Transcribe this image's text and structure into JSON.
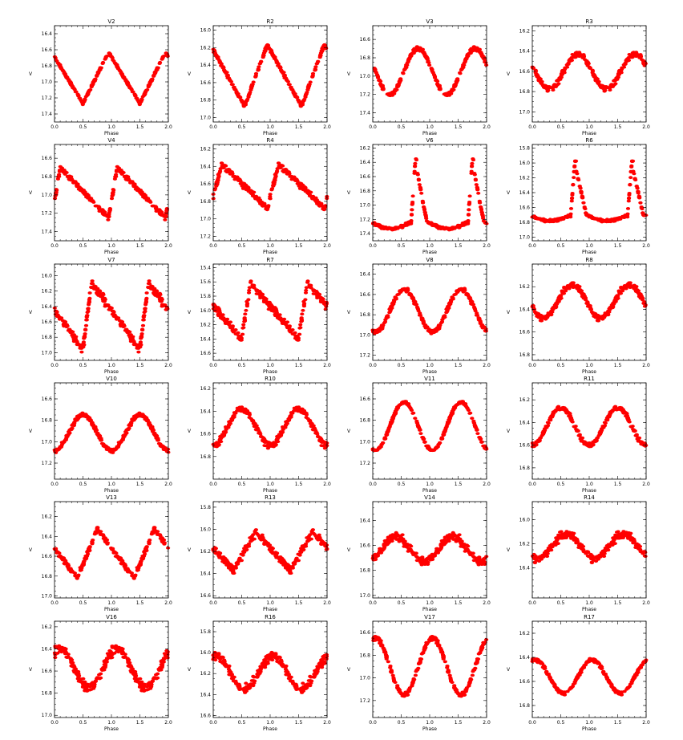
{
  "figure": {
    "xlabel": "Phase",
    "ylabel": "V",
    "xticks": [
      "0.0",
      "0.5",
      "1.0",
      "1.5",
      "2.0"
    ],
    "marker_color": "#ff0000"
  },
  "chart_data": [
    {
      "type": "scatter",
      "title": "V2",
      "ylim": [
        17.5,
        16.3
      ],
      "yticks": [
        "16.4",
        "16.6",
        "16.8",
        "17.0",
        "17.2",
        "17.4"
      ],
      "shape": "saw",
      "bright_phase": 0.95,
      "faint_phase": 0.5,
      "min_mag": 16.63,
      "max_mag": 17.27,
      "scatter": 0.02
    },
    {
      "type": "scatter",
      "title": "R2",
      "ylim": [
        17.05,
        15.95
      ],
      "yticks": [
        "16.0",
        "16.2",
        "16.4",
        "16.6",
        "16.8",
        "17.0"
      ],
      "shape": "saw",
      "bright_phase": 0.95,
      "faint_phase": 0.55,
      "min_mag": 16.17,
      "max_mag": 16.87,
      "scatter": 0.03
    },
    {
      "type": "scatter",
      "title": "V3",
      "ylim": [
        17.5,
        16.45
      ],
      "yticks": [
        "16.6",
        "16.8",
        "17.0",
        "17.2",
        "17.4"
      ],
      "shape": "sine",
      "bright_phase": 0.8,
      "faint_phase": 0.3,
      "min_mag": 16.7,
      "max_mag": 17.2,
      "scatter": 0.03
    },
    {
      "type": "scatter",
      "title": "R3",
      "ylim": [
        17.1,
        16.15
      ],
      "yticks": [
        "16.2",
        "16.4",
        "16.6",
        "16.8",
        "17.0"
      ],
      "shape": "sine",
      "bright_phase": 0.8,
      "faint_phase": 0.3,
      "min_mag": 16.43,
      "max_mag": 16.77,
      "scatter": 0.04
    },
    {
      "type": "scatter",
      "title": "V4",
      "ylim": [
        17.5,
        16.45
      ],
      "yticks": [
        "16.6",
        "16.8",
        "17.0",
        "17.2",
        "17.4"
      ],
      "shape": "saw",
      "bright_phase": 0.1,
      "faint_phase": 0.95,
      "min_mag": 16.7,
      "max_mag": 17.25,
      "scatter": 0.04
    },
    {
      "type": "scatter",
      "title": "R4",
      "ylim": [
        17.25,
        16.15
      ],
      "yticks": [
        "16.2",
        "16.4",
        "16.6",
        "16.8",
        "17.0",
        "17.2"
      ],
      "shape": "saw",
      "bright_phase": 0.15,
      "faint_phase": 0.95,
      "min_mag": 16.37,
      "max_mag": 16.88,
      "scatter": 0.05
    },
    {
      "type": "scatter",
      "title": "V6",
      "ylim": [
        17.5,
        16.15
      ],
      "yticks": [
        "16.2",
        "16.4",
        "16.6",
        "16.8",
        "17.0",
        "17.2",
        "17.4"
      ],
      "shape": "eclipse",
      "bright_phase": 0.75,
      "faint_phase": 0.5,
      "min_mag": 16.35,
      "max_mag": 17.33,
      "scatter": 0.03
    },
    {
      "type": "scatter",
      "title": "R6",
      "ylim": [
        17.05,
        15.75
      ],
      "yticks": [
        "15.8",
        "16.0",
        "16.2",
        "16.4",
        "16.6",
        "16.8",
        "17.0"
      ],
      "shape": "eclipse",
      "bright_phase": 0.75,
      "faint_phase": 0.5,
      "min_mag": 15.98,
      "max_mag": 16.78,
      "scatter": 0.03
    },
    {
      "type": "scatter",
      "title": "V7",
      "ylim": [
        17.1,
        15.85
      ],
      "yticks": [
        "15.8",
        "16.0",
        "16.2",
        "16.4",
        "16.6",
        "16.8",
        "17.0"
      ],
      "shape": "saw",
      "bright_phase": 0.65,
      "faint_phase": 0.5,
      "min_mag": 16.1,
      "max_mag": 16.95,
      "scatter": 0.08
    },
    {
      "type": "scatter",
      "title": "R7",
      "ylim": [
        16.7,
        15.35
      ],
      "yticks": [
        "15.4",
        "15.6",
        "15.8",
        "16.0",
        "16.2",
        "16.4",
        "16.6"
      ],
      "shape": "saw",
      "bright_phase": 0.65,
      "faint_phase": 0.5,
      "min_mag": 15.62,
      "max_mag": 16.4,
      "scatter": 0.08
    },
    {
      "type": "scatter",
      "title": "V8",
      "ylim": [
        17.25,
        16.3
      ],
      "yticks": [
        "16.4",
        "16.6",
        "16.8",
        "17.0",
        "17.2"
      ],
      "shape": "sine",
      "bright_phase": 0.55,
      "faint_phase": 0.05,
      "min_mag": 16.55,
      "max_mag": 16.97,
      "scatter": 0.03
    },
    {
      "type": "scatter",
      "title": "R8",
      "ylim": [
        16.85,
        16.0
      ],
      "yticks": [
        "16.2",
        "16.4",
        "16.6",
        "16.8"
      ],
      "shape": "sine",
      "bright_phase": 0.7,
      "faint_phase": 0.2,
      "min_mag": 16.18,
      "max_mag": 16.48,
      "scatter": 0.04
    },
    {
      "type": "scatter",
      "title": "V10",
      "ylim": [
        17.35,
        16.45
      ],
      "yticks": [
        "16.6",
        "16.8",
        "17.0",
        "17.2"
      ],
      "shape": "sine",
      "bright_phase": 0.5,
      "faint_phase": 0.0,
      "min_mag": 16.75,
      "max_mag": 17.08,
      "scatter": 0.03
    },
    {
      "type": "scatter",
      "title": "R10",
      "ylim": [
        17.0,
        16.15
      ],
      "yticks": [
        "16.2",
        "16.4",
        "16.6",
        "16.8"
      ],
      "shape": "sine",
      "bright_phase": 0.5,
      "faint_phase": 0.0,
      "min_mag": 16.38,
      "max_mag": 16.7,
      "scatter": 0.04
    },
    {
      "type": "scatter",
      "title": "V11",
      "ylim": [
        17.35,
        16.45
      ],
      "yticks": [
        "16.6",
        "16.8",
        "17.0",
        "17.2"
      ],
      "shape": "sine",
      "bright_phase": 0.55,
      "faint_phase": 0.05,
      "min_mag": 16.63,
      "max_mag": 17.08,
      "scatter": 0.02
    },
    {
      "type": "scatter",
      "title": "R11",
      "ylim": [
        16.9,
        16.05
      ],
      "yticks": [
        "16.2",
        "16.4",
        "16.6",
        "16.8"
      ],
      "shape": "sine",
      "bright_phase": 0.5,
      "faint_phase": 0.05,
      "min_mag": 16.27,
      "max_mag": 16.6,
      "scatter": 0.03
    },
    {
      "type": "scatter",
      "title": "V13",
      "ylim": [
        17.02,
        16.05
      ],
      "yticks": [
        "16.2",
        "16.4",
        "16.6",
        "16.8",
        "17.0"
      ],
      "shape": "saw",
      "bright_phase": 0.75,
      "faint_phase": 0.4,
      "min_mag": 16.33,
      "max_mag": 16.82,
      "scatter": 0.04
    },
    {
      "type": "scatter",
      "title": "R13",
      "ylim": [
        16.62,
        15.75
      ],
      "yticks": [
        "15.8",
        "16.0",
        "16.2",
        "16.4",
        "16.6"
      ],
      "shape": "saw",
      "bright_phase": 0.75,
      "faint_phase": 0.35,
      "min_mag": 16.02,
      "max_mag": 16.37,
      "scatter": 0.05
    },
    {
      "type": "scatter",
      "title": "V14",
      "ylim": [
        17.02,
        16.25
      ],
      "yticks": [
        "16.4",
        "16.6",
        "16.8",
        "17.0"
      ],
      "shape": "sine",
      "bright_phase": 0.4,
      "faint_phase": 0.9,
      "min_mag": 16.53,
      "max_mag": 16.73,
      "scatter": 0.05
    },
    {
      "type": "scatter",
      "title": "R14",
      "ylim": [
        16.65,
        15.85
      ],
      "yticks": [
        "16.0",
        "16.2",
        "16.4"
      ],
      "shape": "sine",
      "bright_phase": 0.6,
      "faint_phase": 0.05,
      "min_mag": 16.12,
      "max_mag": 16.32,
      "scatter": 0.05
    },
    {
      "type": "scatter",
      "title": "V16",
      "ylim": [
        17.02,
        16.15
      ],
      "yticks": [
        "16.2",
        "16.4",
        "16.6",
        "16.8",
        "17.0"
      ],
      "shape": "sine",
      "bright_phase": 0.1,
      "faint_phase": 0.6,
      "min_mag": 16.4,
      "max_mag": 16.75,
      "scatter": 0.06
    },
    {
      "type": "scatter",
      "title": "R16",
      "ylim": [
        16.62,
        15.7
      ],
      "yticks": [
        "15.8",
        "16.0",
        "16.2",
        "16.4",
        "16.6"
      ],
      "shape": "sine",
      "bright_phase": 0.05,
      "faint_phase": 0.55,
      "min_mag": 16.03,
      "max_mag": 16.35,
      "scatter": 0.06
    },
    {
      "type": "scatter",
      "title": "V17",
      "ylim": [
        17.35,
        16.5
      ],
      "yticks": [
        "16.6",
        "16.8",
        "17.0",
        "17.2"
      ],
      "shape": "sine",
      "bright_phase": 0.05,
      "faint_phase": 0.55,
      "min_mag": 16.65,
      "max_mag": 17.15,
      "scatter": 0.03
    },
    {
      "type": "scatter",
      "title": "R17",
      "ylim": [
        16.9,
        16.1
      ],
      "yticks": [
        "16.2",
        "16.4",
        "16.6",
        "16.8"
      ],
      "shape": "sine",
      "bright_phase": 0.05,
      "faint_phase": 0.55,
      "min_mag": 16.42,
      "max_mag": 16.7,
      "scatter": 0.02
    }
  ]
}
